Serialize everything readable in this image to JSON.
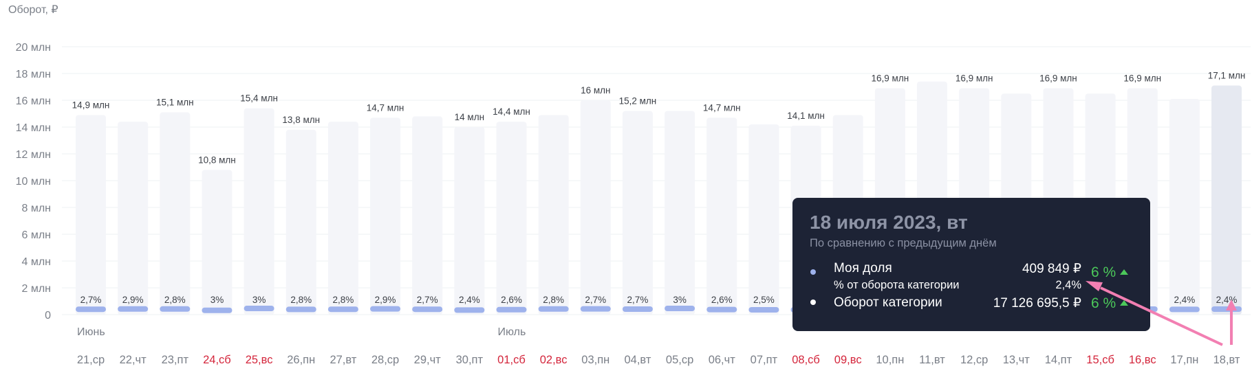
{
  "chart_data": {
    "type": "bar",
    "ylabel": "Оборот, ₽",
    "ylim": [
      0,
      20
    ],
    "yticks": [
      "0",
      "2 млн",
      "4 млн",
      "6 млн",
      "8 млн",
      "10 млн",
      "12 млн",
      "14 млн",
      "16 млн",
      "18 млн",
      "20 млн"
    ],
    "categories": [
      "21,ср",
      "22,чт",
      "23,пт",
      "24,сб",
      "25,вс",
      "26,пн",
      "27,вт",
      "28,ср",
      "29,чт",
      "30,пт",
      "01,сб",
      "02,вс",
      "03,пн",
      "04,вт",
      "05,ср",
      "06,чт",
      "07,пт",
      "08,сб",
      "09,вс",
      "10,пн",
      "11,вт",
      "12,ср",
      "13,чт",
      "14,пт",
      "15,сб",
      "16,вс",
      "17,пн",
      "18,вт"
    ],
    "weekend": [
      false,
      false,
      false,
      true,
      true,
      false,
      false,
      false,
      false,
      false,
      true,
      true,
      false,
      false,
      false,
      false,
      false,
      true,
      true,
      false,
      false,
      false,
      false,
      false,
      true,
      true,
      false,
      false
    ],
    "month_labels": [
      {
        "index": 0,
        "label": "Июнь"
      },
      {
        "index": 10,
        "label": "Июль"
      }
    ],
    "series": [
      {
        "values": [
          14.9,
          14.4,
          15.1,
          10.8,
          15.4,
          13.8,
          14.4,
          14.7,
          14.8,
          14.0,
          14.4,
          14.9,
          16.0,
          15.2,
          15.2,
          14.7,
          14.2,
          14.1,
          14.9,
          16.9,
          17.4,
          16.9,
          16.5,
          16.9,
          16.5,
          16.9,
          16.1,
          17.1
        ],
        "value_labels": [
          "14,9 млн",
          "",
          "15,1 млн",
          "10,8 млн",
          "15,4 млн",
          "13,8 млн",
          "",
          "14,7 млн",
          "",
          "14 млн",
          "14,4 млн",
          "",
          "16 млн",
          "15,2 млн",
          "",
          "14,7 млн",
          "",
          "14,1 млн",
          "",
          "16,9 млн",
          "",
          "16,9 млн",
          "",
          "16,9 млн",
          "",
          "16,9 млн",
          "",
          "17,1 млн"
        ]
      },
      {
        "values": [
          0.4,
          0.42,
          0.42,
          0.32,
          0.46,
          0.39,
          0.4,
          0.43,
          0.4,
          0.34,
          0.37,
          0.42,
          0.43,
          0.41,
          0.46,
          0.38,
          0.36,
          0.36,
          0.38,
          0.41,
          0.42,
          0.41,
          0.4,
          0.41,
          0.4,
          0.41,
          0.39,
          0.41
        ],
        "share_labels": [
          "2,7%",
          "2,9%",
          "2,8%",
          "3%",
          "3%",
          "2,8%",
          "2,8%",
          "2,9%",
          "2,7%",
          "2,4%",
          "2,6%",
          "2,8%",
          "2,7%",
          "2,7%",
          "3%",
          "2,6%",
          "2,5%",
          "",
          "",
          "",
          "",
          "",
          "",
          "",
          "",
          "%",
          "2,4%",
          "2,4%"
        ]
      }
    ],
    "highlight_index": 27
  },
  "colors": {
    "bar": "#f4f5f9",
    "bar_active": "#e6e9f1",
    "share": "#9eb2ec",
    "weekend": "#d4253b",
    "tooltip_bg": "#1d2335",
    "positive": "#4cc85a",
    "arrow": "#f27fb2"
  },
  "tooltip": {
    "title": "18 июля 2023, вт",
    "subtitle": "По сравнению с предыдущим днём",
    "my_share": {
      "name": "Моя доля",
      "value": "409 849 ₽",
      "sub_name": "% от оборота категории",
      "sub_value": "2,4%",
      "change": "6 %",
      "dot_color": "#9eb2ec"
    },
    "category": {
      "name": "Оборот категории",
      "value": "17 126 695,5 ₽",
      "change": "6 %",
      "dot_color": "#ffffff"
    }
  }
}
